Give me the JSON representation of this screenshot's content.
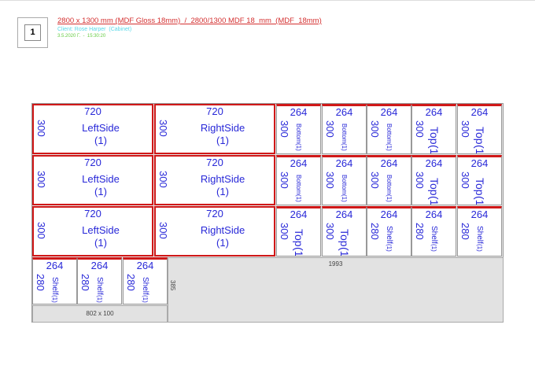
{
  "header": {
    "sheet_number": "1",
    "title": "2800 x 1300 mm (MDF Gloss 18mm)  /  2800/1300 MDF 18  mm  (MDF  18mm)",
    "client": "Client: Rose Harper  (Cabinet)",
    "date": "3.5.2020 Г.  -  15:30:20"
  },
  "colors": {
    "panel_edge": "#d01818",
    "panel_text": "#2828d8",
    "title": "#d43030",
    "client": "#5ad8e8",
    "date": "#66cc44",
    "waste": "#e2e2e2"
  },
  "panels": [
    {
      "width": "720",
      "height": "300",
      "label": "LeftSide",
      "qty": "(1)"
    },
    {
      "width": "720",
      "height": "300",
      "label": "RightSide",
      "qty": "(1)"
    },
    {
      "width": "264",
      "height": "300",
      "label": "Bottom",
      "qty": "(1)"
    },
    {
      "width": "264",
      "height": "300",
      "label": "Bottom",
      "qty": "(1)"
    },
    {
      "width": "264",
      "height": "300",
      "label": "Bottom",
      "qty": "(1)"
    },
    {
      "width": "264",
      "height": "300",
      "label": "Top",
      "qty": "(1)"
    },
    {
      "width": "264",
      "height": "300",
      "label": "Top",
      "qty": "(1)"
    },
    {
      "width": "720",
      "height": "300",
      "label": "LeftSide",
      "qty": "(1)"
    },
    {
      "width": "720",
      "height": "300",
      "label": "RightSide",
      "qty": "(1)"
    },
    {
      "width": "264",
      "height": "300",
      "label": "Bottom",
      "qty": "(1)"
    },
    {
      "width": "264",
      "height": "300",
      "label": "Bottom",
      "qty": "(1)"
    },
    {
      "width": "264",
      "height": "300",
      "label": "Bottom",
      "qty": "(1)"
    },
    {
      "width": "264",
      "height": "300",
      "label": "Top",
      "qty": "(1)"
    },
    {
      "width": "264",
      "height": "300",
      "label": "Top",
      "qty": "(1)"
    },
    {
      "width": "720",
      "height": "300",
      "label": "LeftSide",
      "qty": "(1)"
    },
    {
      "width": "720",
      "height": "300",
      "label": "RightSide",
      "qty": "(1)"
    },
    {
      "width": "264",
      "height": "300",
      "label": "Top",
      "qty": "(1)"
    },
    {
      "width": "264",
      "height": "300",
      "label": "Top",
      "qty": "(1)"
    },
    {
      "width": "264",
      "height": "280",
      "label": "Shelf",
      "qty": "(1)"
    },
    {
      "width": "264",
      "height": "280",
      "label": "Shelf",
      "qty": "(1)"
    },
    {
      "width": "264",
      "height": "280",
      "label": "Shelf",
      "qty": "(1)"
    },
    {
      "width": "264",
      "height": "280",
      "label": "Shelf",
      "qty": "(1)"
    },
    {
      "width": "264",
      "height": "280",
      "label": "Shelf",
      "qty": "(1)"
    },
    {
      "width": "264",
      "height": "280",
      "label": "Shelf",
      "qty": "(1)"
    }
  ],
  "waste": {
    "large_width": "1993",
    "large_height": "385",
    "strip": "802 x 100"
  }
}
